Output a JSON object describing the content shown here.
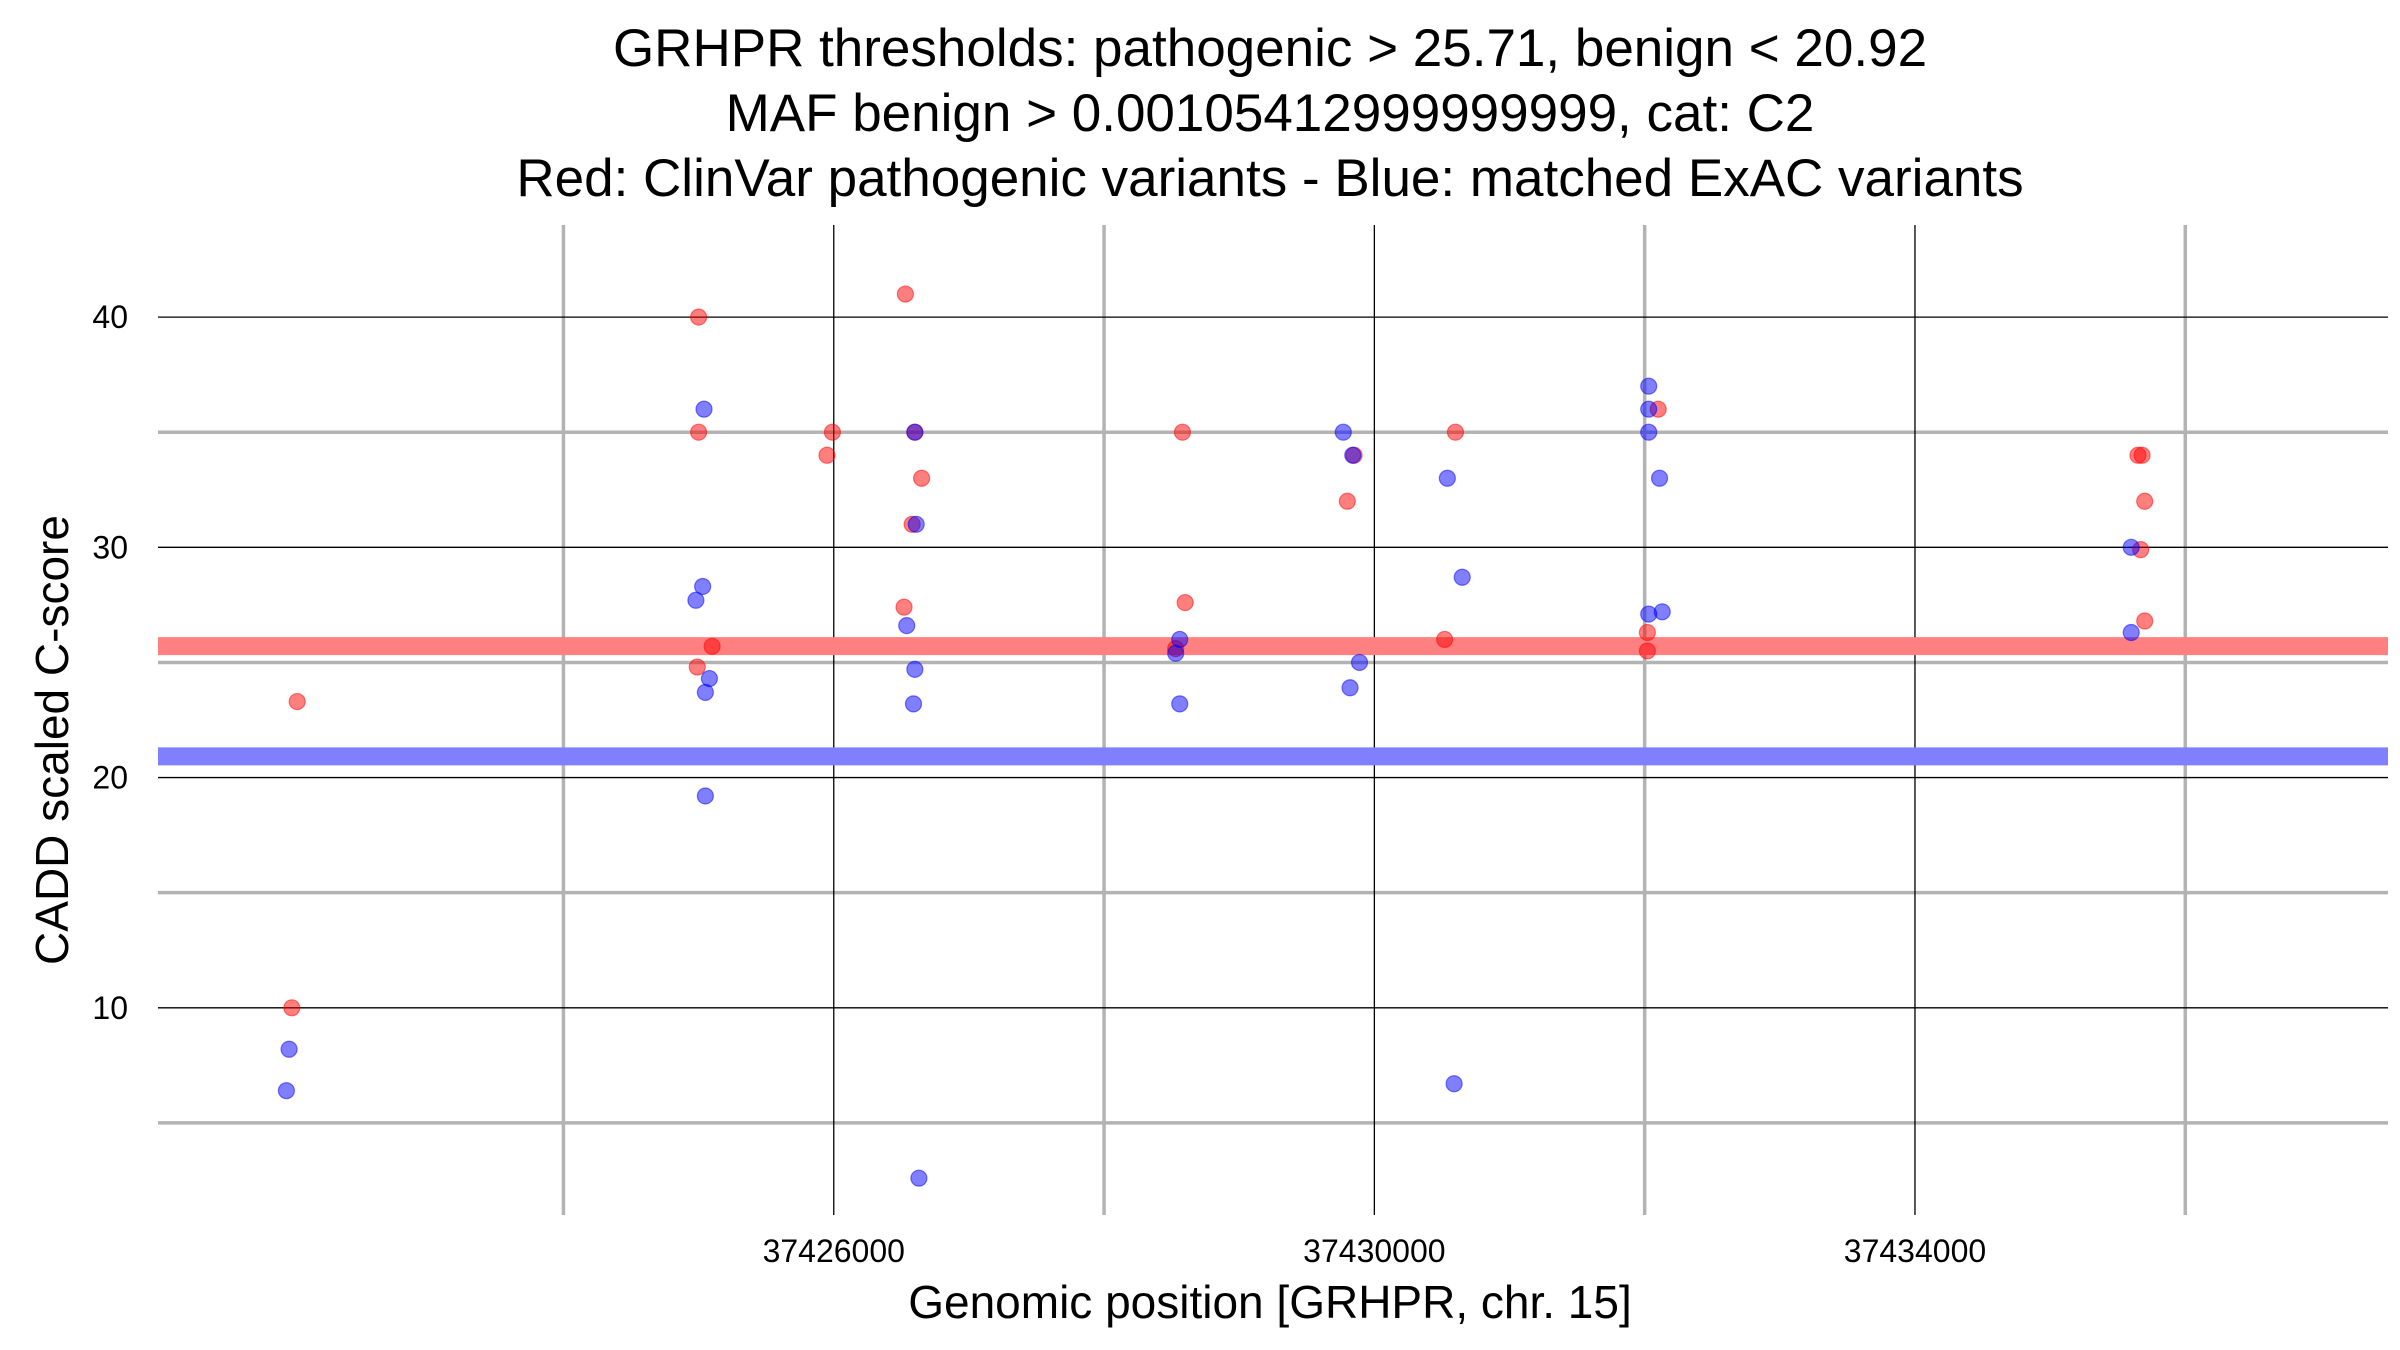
{
  "chart_data": {
    "type": "scatter",
    "title_lines": [
      "GRHPR thresholds: pathogenic > 25.71, benign < 20.92",
      "MAF benign > 0.00105412999999999, cat: C2",
      "Red: ClinVar pathogenic variants - Blue: matched ExAC variants"
    ],
    "xlabel": "Genomic position [GRHPR, chr. 15]",
    "ylabel": "CADD scaled C-score",
    "xlim": [
      37421000,
      37437500
    ],
    "ylim": [
      1,
      44
    ],
    "x_major_ticks": [
      37426000,
      37430000,
      37434000
    ],
    "x_tick_labels": [
      "37426000",
      "37430000",
      "37434000"
    ],
    "x_minor_ticks": [
      37424000,
      37428000,
      37432000,
      37436000
    ],
    "y_major_ticks": [
      10,
      20,
      30,
      40
    ],
    "y_tick_labels": [
      "10",
      "20",
      "30",
      "40"
    ],
    "y_minor_ticks": [
      5,
      15,
      25,
      35
    ],
    "thresholds": [
      {
        "name": "pathogenic",
        "value": 25.71,
        "color": "#ff8080"
      },
      {
        "name": "benign",
        "value": 20.92,
        "color": "#8080ff"
      }
    ],
    "series": [
      {
        "name": "ClinVar pathogenic variants",
        "color": "#ff0000",
        "points": [
          [
            37422030,
            23.3
          ],
          [
            37421990,
            10.0
          ],
          [
            37425000,
            40.0
          ],
          [
            37425000,
            35.0
          ],
          [
            37424990,
            24.8
          ],
          [
            37425100,
            25.7
          ],
          [
            37425950,
            34.0
          ],
          [
            37425990,
            35.0
          ],
          [
            37426530,
            41.0
          ],
          [
            37426600,
            35.0
          ],
          [
            37426650,
            33.0
          ],
          [
            37426580,
            31.0
          ],
          [
            37426520,
            27.4
          ],
          [
            37428580,
            35.0
          ],
          [
            37428600,
            27.6
          ],
          [
            37428530,
            25.6
          ],
          [
            37429800,
            32.0
          ],
          [
            37429850,
            34.0
          ],
          [
            37430600,
            35.0
          ],
          [
            37430520,
            26.0
          ],
          [
            37432100,
            36.0
          ],
          [
            37432020,
            26.3
          ],
          [
            37432020,
            25.5
          ],
          [
            37435650,
            34.0
          ],
          [
            37435680,
            34.0
          ],
          [
            37435700,
            32.0
          ],
          [
            37435670,
            29.9
          ],
          [
            37435700,
            26.8
          ]
        ]
      },
      {
        "name": "matched ExAC variants",
        "color": "#0000ff",
        "points": [
          [
            37421970,
            8.2
          ],
          [
            37421950,
            6.4
          ],
          [
            37425040,
            36.0
          ],
          [
            37425030,
            28.3
          ],
          [
            37424980,
            27.7
          ],
          [
            37425080,
            24.3
          ],
          [
            37425050,
            23.7
          ],
          [
            37425050,
            19.2
          ],
          [
            37426600,
            35.0
          ],
          [
            37426610,
            31.0
          ],
          [
            37426540,
            26.6
          ],
          [
            37426600,
            24.7
          ],
          [
            37426590,
            23.2
          ],
          [
            37426630,
            2.6
          ],
          [
            37428530,
            25.4
          ],
          [
            37428560,
            26.0
          ],
          [
            37428560,
            23.2
          ],
          [
            37429770,
            35.0
          ],
          [
            37429840,
            34.0
          ],
          [
            37429890,
            25.0
          ],
          [
            37429820,
            23.9
          ],
          [
            37430540,
            33.0
          ],
          [
            37430650,
            28.7
          ],
          [
            37430590,
            6.7
          ],
          [
            37432030,
            37.0
          ],
          [
            37432030,
            36.0
          ],
          [
            37432030,
            35.0
          ],
          [
            37432110,
            33.0
          ],
          [
            37432030,
            27.1
          ],
          [
            37432130,
            27.2
          ],
          [
            37435600,
            30.0
          ],
          [
            37435600,
            26.3
          ]
        ]
      }
    ]
  }
}
